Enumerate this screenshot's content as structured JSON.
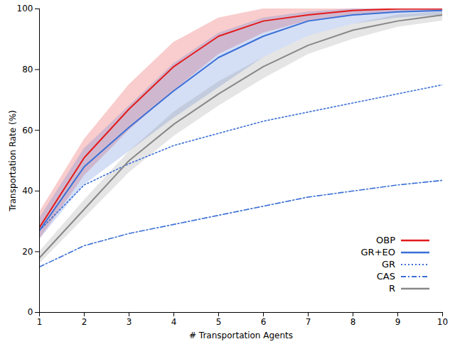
{
  "chart_data": {
    "type": "line",
    "x_label": "# Transportation Agents",
    "y_label": "Transportation Rate (%)",
    "x": [
      1,
      2,
      3,
      4,
      5,
      6,
      7,
      8,
      9,
      10
    ],
    "xlim": [
      1,
      10
    ],
    "xticks": [
      1,
      2,
      3,
      4,
      5,
      6,
      7,
      8,
      9,
      10
    ],
    "ylim": [
      0,
      100
    ],
    "yticks": [
      0,
      20,
      40,
      60,
      80,
      100
    ],
    "grid": false,
    "legend": "lower right",
    "series": [
      {
        "name": "OBP",
        "color": "#e41a1c",
        "line_style": "solid",
        "values": [
          28,
          51,
          67,
          81,
          91,
          96,
          98,
          99.5,
          100,
          100
        ],
        "lower": [
          24,
          45,
          60,
          73,
          85,
          92,
          96,
          98,
          99,
          99
        ],
        "upper": [
          33,
          57,
          75,
          89,
          97,
          100,
          100,
          100,
          100,
          100
        ]
      },
      {
        "name": "GR+EO",
        "color": "#3b6fd6",
        "line_style": "solid",
        "values": [
          27,
          48,
          61,
          73,
          84,
          91,
          96,
          98,
          99,
          99.5
        ],
        "lower": [
          24,
          42,
          53,
          64,
          74,
          84,
          91,
          95,
          97,
          98
        ],
        "upper": [
          31,
          54,
          68,
          82,
          92,
          97,
          99,
          100,
          100,
          100
        ]
      },
      {
        "name": "GR",
        "color": "#3b6fd6",
        "line_style": "dotted",
        "values": [
          27,
          42,
          49,
          55,
          59,
          63,
          66,
          69,
          72,
          75
        ]
      },
      {
        "name": "CAS",
        "color": "#3b6fd6",
        "line_style": "dashdot",
        "values": [
          15,
          22,
          26,
          29,
          32,
          35,
          38,
          40,
          42,
          43.5
        ]
      },
      {
        "name": "R",
        "color": "#888888",
        "line_style": "solid",
        "values": [
          18,
          34,
          50,
          62,
          72,
          81,
          88,
          93,
          96,
          98
        ],
        "lower": [
          16,
          31,
          46,
          58,
          68,
          77,
          85,
          90,
          94,
          96
        ],
        "upper": [
          20,
          37,
          53,
          66,
          76,
          84,
          91,
          95,
          98,
          99
        ]
      }
    ]
  }
}
